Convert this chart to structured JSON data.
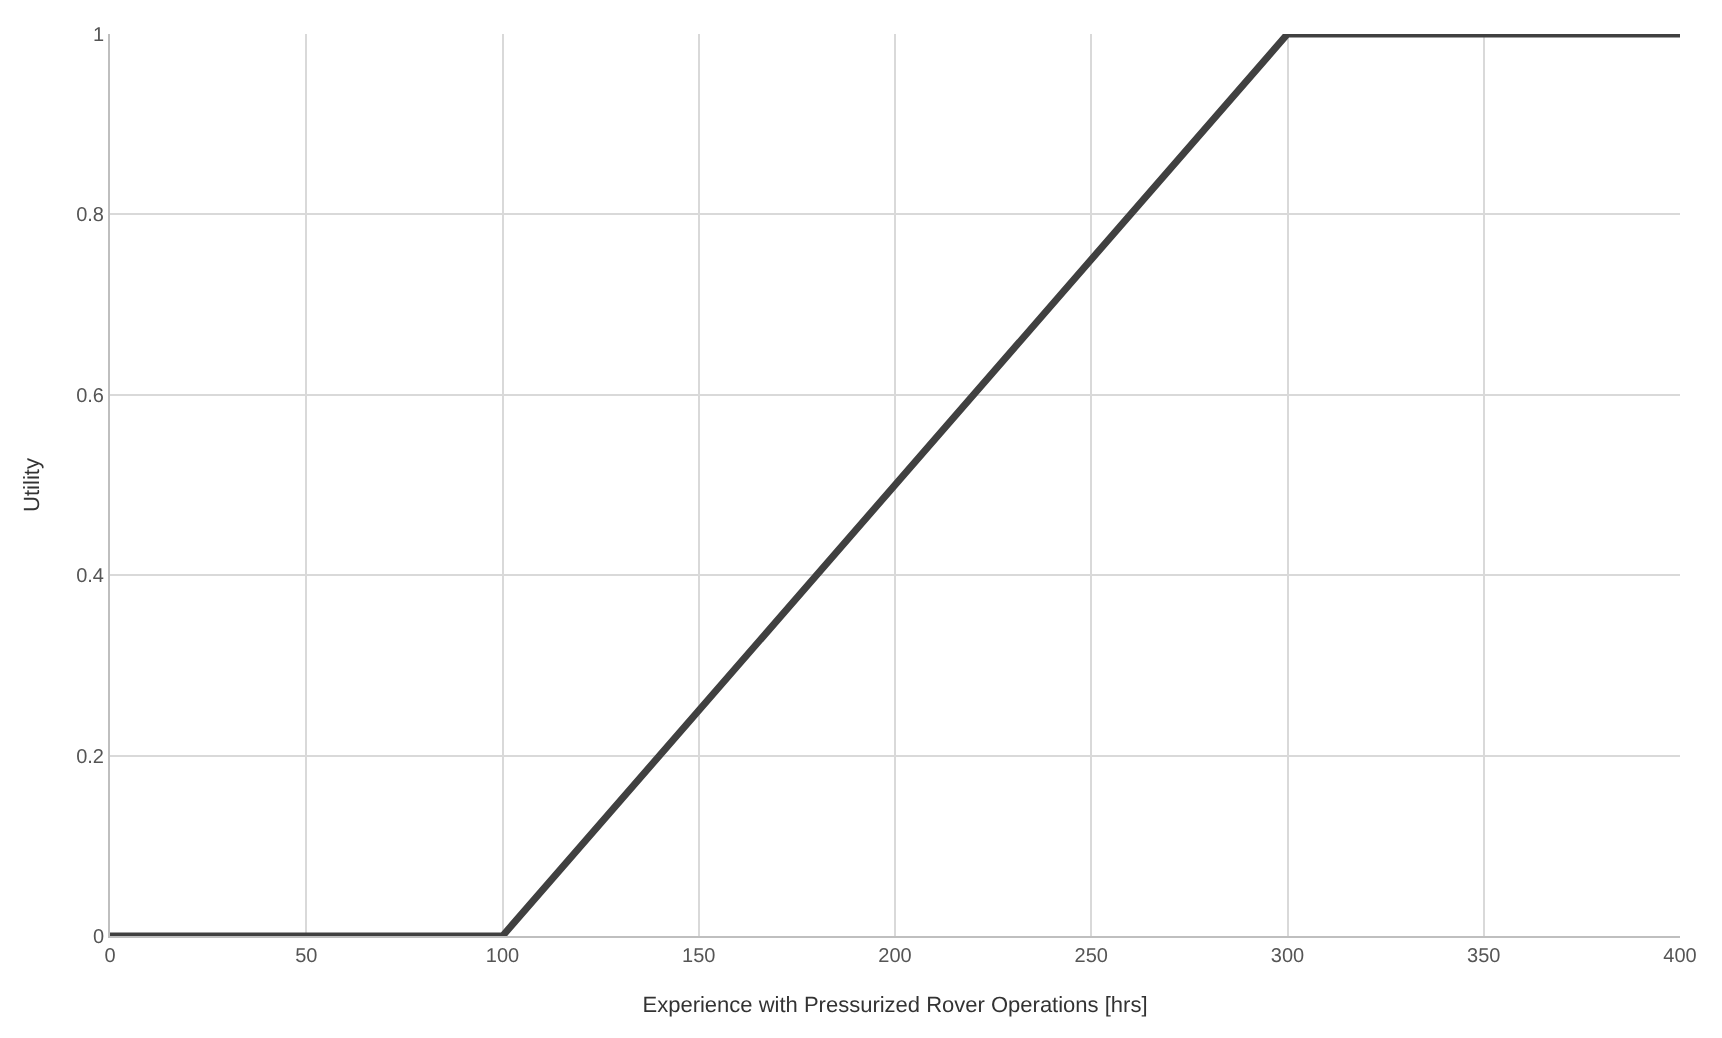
{
  "chart_data": {
    "type": "line",
    "xlabel": "Experience with Pressurized Rover Operations [hrs]",
    "ylabel": "Utility",
    "x": [
      0,
      100,
      300,
      400
    ],
    "series": [
      {
        "color": "#404040",
        "values": [
          0,
          0,
          1,
          1
        ]
      }
    ],
    "xlim": [
      0,
      400
    ],
    "xticks": [
      0,
      50,
      100,
      150,
      200,
      250,
      300,
      350,
      400
    ],
    "ylim": [
      0,
      1
    ],
    "yticks": [
      0,
      0.2,
      0.4,
      0.6,
      0.8,
      1
    ],
    "grid": true,
    "marker": "none",
    "line_style": "solid"
  }
}
